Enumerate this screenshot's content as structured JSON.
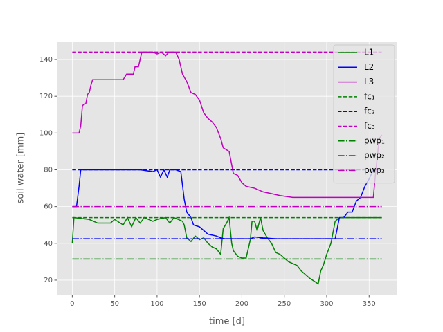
{
  "chart_data": {
    "type": "line",
    "xlabel": "time [d]",
    "ylabel": "soil water [mm]",
    "xlim": [
      -18.25,
      383.25
    ],
    "ylim": [
      11.7,
      149.8
    ],
    "xticks": [
      0,
      50,
      100,
      150,
      200,
      250,
      300,
      350
    ],
    "yticks": [
      20,
      40,
      60,
      80,
      100,
      120,
      140
    ],
    "grid": true,
    "legend": "upper right",
    "series": [
      {
        "name": "L1",
        "color": "#008000",
        "style": "solid",
        "x": [
          0,
          2,
          20,
          30,
          45,
          50,
          60,
          65,
          70,
          75,
          80,
          85,
          95,
          100,
          110,
          115,
          120,
          130,
          132,
          135,
          140,
          145,
          150,
          155,
          160,
          165,
          170,
          175,
          178,
          182,
          185,
          188,
          190,
          195,
          200,
          205,
          210,
          212,
          215,
          218,
          222,
          225,
          230,
          235,
          240,
          245,
          255,
          265,
          270,
          280,
          290,
          293,
          296,
          300,
          305,
          310,
          315,
          365
        ],
        "values": [
          40,
          54,
          53,
          51,
          51,
          53,
          50,
          54,
          49,
          54,
          51,
          54,
          52,
          53,
          54,
          51,
          54,
          52,
          50,
          43,
          41,
          44,
          42,
          43,
          40,
          38,
          37,
          34,
          48,
          51,
          54,
          40,
          36,
          33,
          32,
          32,
          42,
          52,
          52,
          47,
          54,
          47,
          43,
          40,
          35,
          34,
          30,
          28,
          25,
          21,
          18,
          25,
          28,
          34,
          40,
          52,
          54,
          54
        ]
      },
      {
        "name": "L2",
        "color": "#0000ff",
        "style": "solid",
        "x": [
          0,
          5,
          8,
          10,
          80,
          95,
          100,
          104,
          108,
          112,
          115,
          122,
          128,
          132,
          135,
          140,
          143,
          150,
          155,
          160,
          170,
          175,
          180,
          210,
          215,
          225,
          240,
          310,
          315,
          320,
          325,
          330,
          335,
          340,
          345,
          350,
          355,
          360,
          365
        ],
        "values": [
          60,
          60,
          71,
          80,
          80,
          79,
          80,
          76,
          80,
          76,
          80,
          80,
          79,
          64,
          57,
          54,
          50,
          49,
          47,
          45,
          44,
          43,
          42.5,
          42.5,
          43.5,
          43,
          42.5,
          42.5,
          54,
          54,
          57,
          57,
          63,
          65,
          71,
          75,
          80,
          80,
          80
        ]
      },
      {
        "name": "L3",
        "color": "#bf00bf",
        "style": "solid",
        "x": [
          0,
          8,
          10,
          12,
          16,
          18,
          20,
          22,
          24,
          60,
          64,
          72,
          74,
          78,
          82,
          95,
          100,
          105,
          110,
          114,
          122,
          126,
          130,
          135,
          140,
          145,
          150,
          155,
          160,
          165,
          170,
          175,
          178,
          185,
          190,
          195,
          200,
          205,
          215,
          225,
          235,
          245,
          260,
          300,
          355,
          358,
          362,
          365
        ],
        "values": [
          100,
          100,
          104,
          115,
          116,
          121,
          122,
          126,
          129,
          129,
          132,
          132,
          136,
          136,
          144,
          144,
          143,
          144,
          142,
          144,
          144,
          140,
          132,
          128,
          122,
          121,
          118,
          111,
          108,
          106,
          103,
          97,
          92,
          90,
          78,
          77,
          73,
          71,
          70,
          68,
          67,
          66,
          65,
          65,
          65,
          80,
          97,
          99
        ]
      },
      {
        "name": "fc₁",
        "color": "#008000",
        "style": "dashed",
        "x": [
          0,
          365
        ],
        "values": [
          54,
          54
        ]
      },
      {
        "name": "fc₂",
        "color": "#0000ff",
        "style": "dashed",
        "x": [
          0,
          365
        ],
        "values": [
          80,
          80
        ]
      },
      {
        "name": "fc₃",
        "color": "#bf00bf",
        "style": "dashed",
        "x": [
          0,
          365
        ],
        "values": [
          144,
          144
        ]
      },
      {
        "name": "pwp₁",
        "color": "#008000",
        "style": "dashdot",
        "x": [
          0,
          365
        ],
        "values": [
          31.5,
          31.5
        ]
      },
      {
        "name": "pwp₂",
        "color": "#0000ff",
        "style": "dashdot",
        "x": [
          0,
          365
        ],
        "values": [
          42.5,
          42.5
        ]
      },
      {
        "name": "pwp₃",
        "color": "#bf00bf",
        "style": "dashdot",
        "x": [
          0,
          365
        ],
        "values": [
          60,
          60
        ]
      }
    ]
  }
}
